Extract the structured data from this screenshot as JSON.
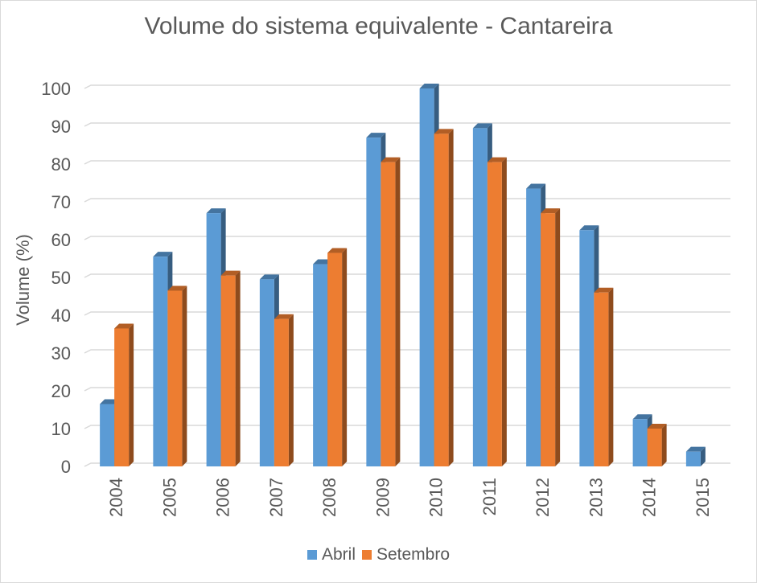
{
  "chart_data": {
    "type": "bar",
    "title": "Volume do sistema equivalente - Cantareira",
    "xlabel": "",
    "ylabel": "Volume (%)",
    "ylim": [
      0,
      100
    ],
    "yticks": [
      0,
      10,
      20,
      30,
      40,
      50,
      60,
      70,
      80,
      90,
      100
    ],
    "grid": true,
    "legend_position": "bottom",
    "style": "3d-clustered-column",
    "categories": [
      "2004",
      "2005",
      "2006",
      "2007",
      "2008",
      "2009",
      "2010",
      "2011",
      "2012",
      "2013",
      "2014",
      "2015"
    ],
    "series": [
      {
        "name": "Abril",
        "color": "#5b9bd5",
        "values": [
          16.5,
          55.5,
          67,
          49.5,
          53.5,
          87,
          100,
          89.5,
          73.5,
          62.5,
          12.5,
          3.9
        ]
      },
      {
        "name": "Setembro",
        "color": "#ed7d31",
        "values": [
          36.5,
          46.5,
          50.5,
          39,
          56.5,
          80.5,
          88,
          80.5,
          67,
          46,
          10,
          null
        ]
      }
    ]
  }
}
